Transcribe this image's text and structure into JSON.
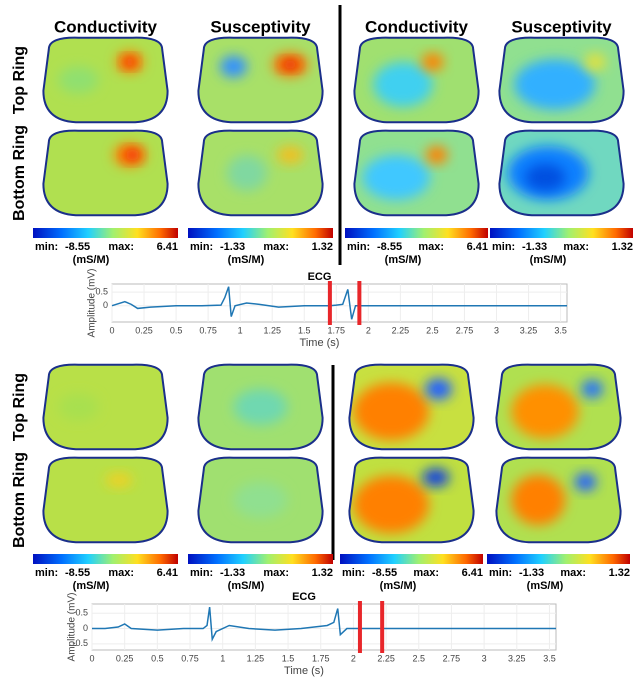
{
  "sections": [
    {
      "column_headers": [
        "Conductivity",
        "Susceptivity",
        "Conductivity",
        "Susceptivity"
      ],
      "row_labels": [
        "Top Ring",
        "Bottom Ring"
      ],
      "colorbars": [
        {
          "min_label": "min:",
          "min": -8.55,
          "max_label": "max:",
          "max": 6.41,
          "unit": "(mS/M)"
        },
        {
          "min_label": "min:",
          "min": -1.33,
          "max_label": "max:",
          "max": 1.32,
          "unit": "(mS/M)"
        },
        {
          "min_label": "min:",
          "min": -8.55,
          "max_label": "max:",
          "max": 6.41,
          "unit": "(mS/M)"
        },
        {
          "min_label": "min:",
          "min": -1.33,
          "max_label": "max:",
          "max": 1.32,
          "unit": "(mS/M)"
        }
      ]
    },
    {
      "row_labels": [
        "Top Ring",
        "Bottom Ring"
      ],
      "colorbars": [
        {
          "min_label": "min:",
          "min": -8.55,
          "max_label": "max:",
          "max": 6.41,
          "unit": "(mS/M)"
        },
        {
          "min_label": "min:",
          "min": -1.33,
          "max_label": "max:",
          "max": 1.32,
          "unit": "(mS/M)"
        },
        {
          "min_label": "min:",
          "min": -8.55,
          "max_label": "max:",
          "max": 6.41,
          "unit": "(mS/M)"
        },
        {
          "min_label": "min:",
          "min": -1.33,
          "max_label": "max:",
          "max": 1.32,
          "unit": "(mS/M)"
        }
      ]
    }
  ],
  "chart_data": [
    {
      "type": "line",
      "title": "ECG",
      "x_label": "Time (s)",
      "y_label": "Amplitude (mV)",
      "x": [
        0,
        0.1,
        0.15,
        0.2,
        0.3,
        0.5,
        0.7,
        0.85,
        0.88,
        0.91,
        0.93,
        0.96,
        1.05,
        1.15,
        1.3,
        1.5,
        1.7,
        1.75,
        1.8,
        1.84,
        1.87,
        1.9,
        3.55
      ],
      "series": [
        {
          "name": "ECG",
          "color": "#1f77b4",
          "values": [
            0,
            0.15,
            0.05,
            -0.1,
            -0.05,
            0,
            0,
            0.02,
            0.3,
            0.7,
            -0.4,
            0,
            0.1,
            0.05,
            -0.05,
            0,
            0,
            0.02,
            0.05,
            0.6,
            -0.5,
            0,
            0
          ]
        }
      ],
      "markers": [
        1.7,
        1.93
      ],
      "marker_color": "#e8262a",
      "xlim": [
        0,
        3.55
      ],
      "ylim": [
        -0.6,
        0.8
      ],
      "xticks": [
        0,
        0.25,
        0.5,
        0.75,
        1,
        1.25,
        1.5,
        1.75,
        2,
        2.25,
        2.5,
        2.75,
        3,
        3.25,
        3.5
      ],
      "yticks": [
        0,
        0.5
      ],
      "grid": true
    },
    {
      "type": "line",
      "title": "ECG",
      "x_label": "Time (s)",
      "y_label": "Amplitude (mV)",
      "x": [
        0,
        0.1,
        0.2,
        0.25,
        0.3,
        0.5,
        0.7,
        0.85,
        0.88,
        0.9,
        0.92,
        0.95,
        1.05,
        1.2,
        1.4,
        1.6,
        1.8,
        1.85,
        1.88,
        1.9,
        1.95,
        2.05,
        3.55
      ],
      "series": [
        {
          "name": "ECG",
          "color": "#1f77b4",
          "values": [
            0,
            0,
            0.05,
            0.15,
            0,
            -0.05,
            0,
            0,
            0.1,
            0.7,
            -0.35,
            -0.1,
            0.1,
            0,
            -0.05,
            0,
            0.1,
            0.2,
            0.65,
            -0.2,
            0,
            0,
            0
          ]
        }
      ],
      "markers": [
        2.05,
        2.22
      ],
      "marker_color": "#e8262a",
      "xlim": [
        0,
        3.55
      ],
      "ylim": [
        -0.7,
        0.8
      ],
      "xticks": [
        0,
        0.25,
        0.5,
        0.75,
        1,
        1.25,
        1.5,
        1.75,
        2,
        2.25,
        2.5,
        2.75,
        3,
        3.25,
        3.5
      ],
      "yticks": [
        -0.5,
        0,
        0.5
      ],
      "grid": true
    }
  ]
}
